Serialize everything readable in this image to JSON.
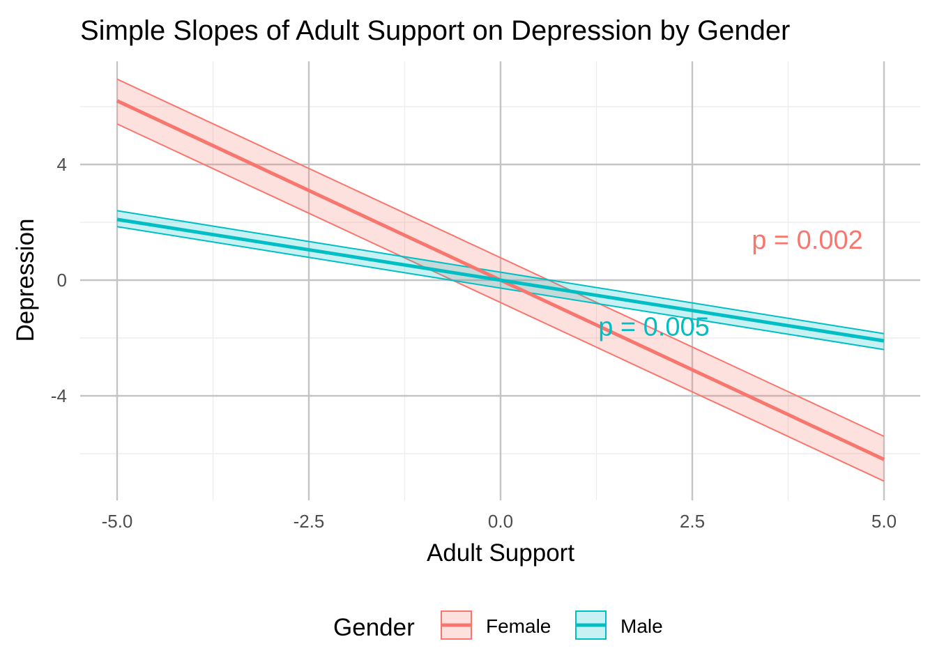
{
  "chart_data": {
    "type": "line",
    "title": "Simple Slopes of Adult Support on Depression by Gender",
    "xlabel": "Adult Support",
    "ylabel": "Depression",
    "xlim": [
      -5.0,
      5.0
    ],
    "ylim": [
      -7.8,
      7.5
    ],
    "x_ticks": [
      -5.0,
      -2.5,
      0.0,
      2.5,
      5.0
    ],
    "x_tick_labels": [
      "-5.0",
      "-2.5",
      "0.0",
      "2.5",
      "5.0"
    ],
    "y_ticks": [
      -4,
      0,
      4
    ],
    "y_tick_labels": [
      "-4",
      "0",
      "4"
    ],
    "grid": true,
    "legend": {
      "title": "Gender",
      "position": "bottom",
      "entries": [
        "Female",
        "Male"
      ]
    },
    "series": [
      {
        "name": "Female",
        "color": "#F8766D",
        "x": [
          -5.0,
          5.0
        ],
        "y": [
          6.2,
          -6.2
        ],
        "ci_lower": [
          5.4,
          -6.95
        ],
        "ci_upper": [
          6.95,
          -5.4
        ]
      },
      {
        "name": "Male",
        "color": "#00BFC4",
        "x": [
          -5.0,
          5.0
        ],
        "y": [
          2.1,
          -2.1
        ],
        "ci_lower": [
          1.85,
          -2.4
        ],
        "ci_upper": [
          2.4,
          -1.85
        ]
      }
    ],
    "annotations": [
      {
        "text": "p = 0.002",
        "x": 4,
        "y": 1.4,
        "color": "#F8766D"
      },
      {
        "text": "p = 0.005",
        "x": 2,
        "y": -1.6,
        "color": "#00BFC4"
      }
    ]
  }
}
